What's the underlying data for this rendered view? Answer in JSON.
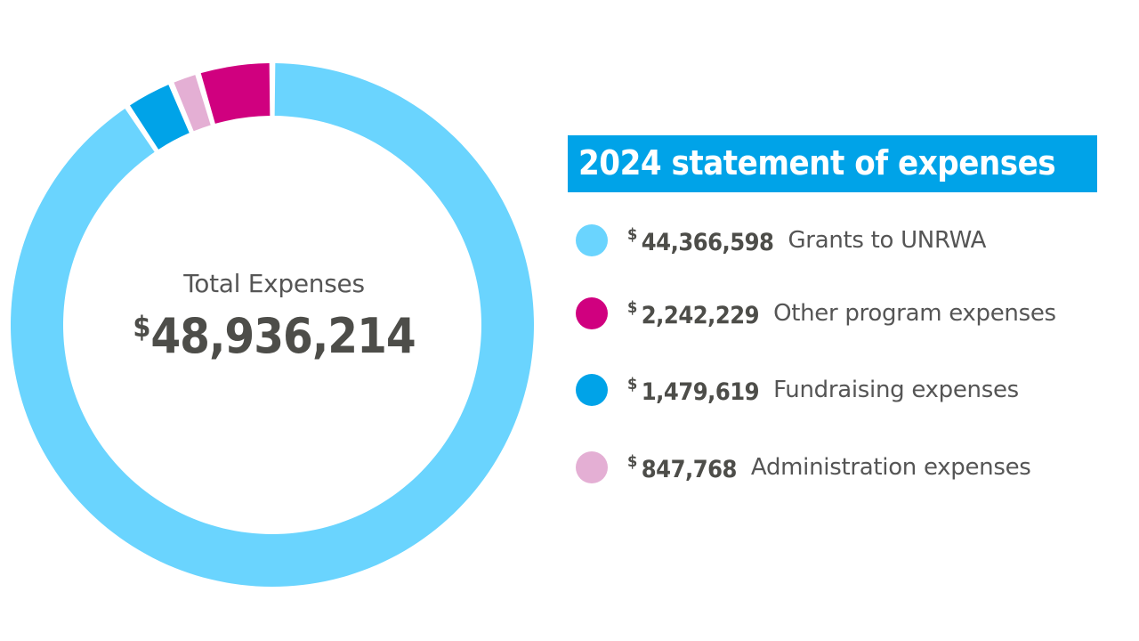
{
  "chart_data": {
    "type": "pie",
    "style": "donut",
    "title": "2024 statement of expenses",
    "currency_symbol": "$",
    "total_label": "Total Expenses",
    "total_value": "48,936,214",
    "total": 48936214,
    "categories": [
      "Grants to UNRWA",
      "Other program expenses",
      "Fundraising expenses",
      "Administration expenses"
    ],
    "values": [
      44366598,
      2242229,
      1479619,
      847768
    ],
    "value_labels": [
      "44,366,598",
      "2,242,229",
      "1,479,619",
      "847,768"
    ],
    "colors": [
      "#6ad4fe",
      "#d0007f",
      "#00a3e8",
      "#e4afd4"
    ],
    "legend_position": "right"
  }
}
